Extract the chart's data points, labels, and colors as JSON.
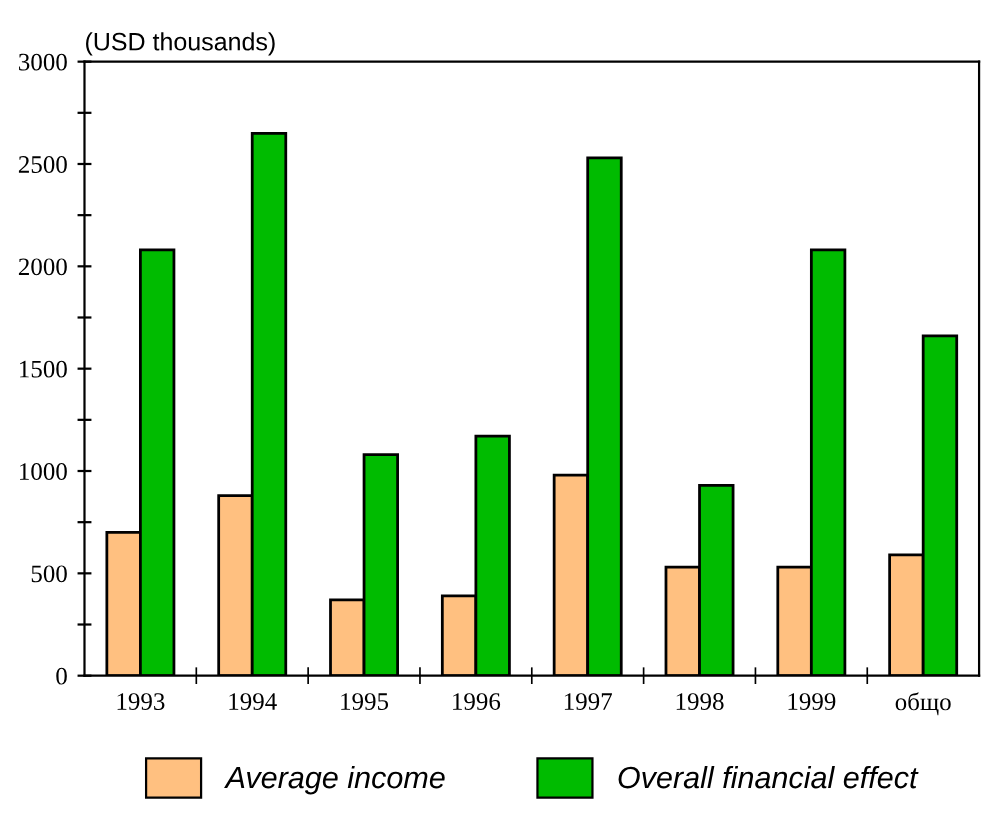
{
  "chart_data": {
    "type": "bar",
    "ylabel": "(USD thousands)",
    "categories": [
      "1993",
      "1994",
      "1995",
      "1996",
      "1997",
      "1998",
      "1999",
      "общо"
    ],
    "series": [
      {
        "name": "Average income",
        "color": "#ffc080",
        "values": [
          700,
          880,
          370,
          390,
          980,
          530,
          530,
          590
        ]
      },
      {
        "name": "Overall financial effect",
        "color": "#00bb00",
        "values": [
          2080,
          2650,
          1080,
          1170,
          2530,
          930,
          2080,
          1660
        ]
      }
    ],
    "ylim": [
      0,
      3000
    ],
    "yticks": [
      0,
      {
        "value": 250,
        "label": null
      },
      500,
      {
        "value": 750,
        "label": null
      },
      1000,
      {
        "value": 1250,
        "label": null
      },
      1500,
      {
        "value": 1750,
        "label": null
      },
      2000,
      {
        "value": 2250,
        "label": null
      },
      2500,
      {
        "value": 2750,
        "label": null
      },
      3000
    ],
    "grid": false,
    "legend": "bottom"
  }
}
